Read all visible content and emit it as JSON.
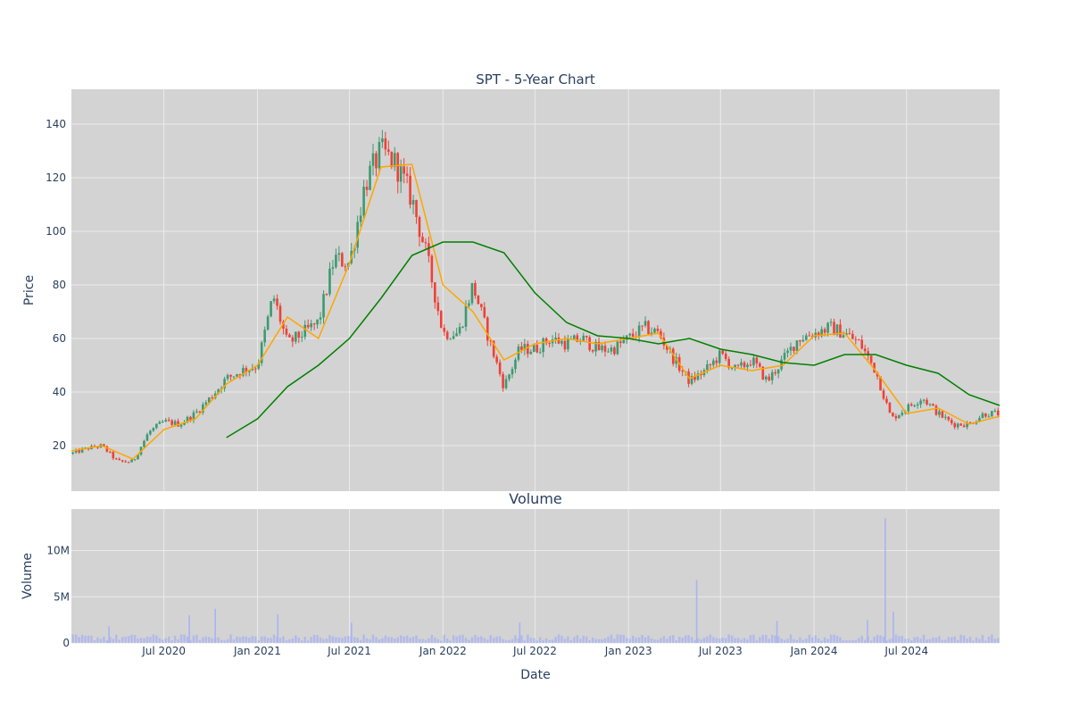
{
  "chart_data": [
    {
      "type": "candlestick",
      "title": "SPT - 5-Year Chart",
      "xlabel": "",
      "ylabel": "Price",
      "ylim": [
        3,
        153
      ],
      "yticks": [
        20,
        40,
        60,
        80,
        100,
        120,
        140
      ],
      "grid": true,
      "legend": "none",
      "colors": {
        "up": "#3d9970",
        "down": "#ef4136",
        "ma_short": "#ffa500",
        "ma_long": "#008000",
        "plot_bg": "#d3d3d3",
        "grid": "#ebebeb"
      },
      "series": [
        {
          "kind": "close",
          "x": [
            "2020-01-01",
            "2020-02-01",
            "2020-03-01",
            "2020-04-01",
            "2020-05-01",
            "2020-06-01",
            "2020-07-01",
            "2020-08-01",
            "2020-09-01",
            "2020-10-01",
            "2020-11-01",
            "2020-12-01",
            "2021-01-01",
            "2021-02-01",
            "2021-03-01",
            "2021-04-01",
            "2021-05-01",
            "2021-06-01",
            "2021-07-01",
            "2021-08-01",
            "2021-09-01",
            "2021-10-01",
            "2021-11-01",
            "2021-12-01",
            "2022-01-01",
            "2022-02-01",
            "2022-03-01",
            "2022-04-01",
            "2022-05-01",
            "2022-06-01",
            "2022-07-01",
            "2022-08-01",
            "2022-09-01",
            "2022-10-01",
            "2022-11-01",
            "2022-12-01",
            "2023-01-01",
            "2023-02-01",
            "2023-03-01",
            "2023-04-01",
            "2023-05-01",
            "2023-06-01",
            "2023-07-01",
            "2023-08-01",
            "2023-09-01",
            "2023-10-01",
            "2023-11-01",
            "2023-12-01",
            "2024-01-01",
            "2024-02-01",
            "2024-03-01",
            "2024-04-01",
            "2024-05-01",
            "2024-06-01",
            "2024-07-01",
            "2024-08-01",
            "2024-09-01",
            "2024-10-01",
            "2024-11-01",
            "2024-12-01"
          ],
          "values": [
            17,
            19,
            20,
            14,
            14,
            25,
            29,
            28,
            32,
            38,
            45,
            48,
            50,
            76,
            58,
            62,
            66,
            90,
            88,
            118,
            130,
            125,
            112,
            90,
            62,
            62,
            80,
            60,
            42,
            56,
            56,
            60,
            58,
            60,
            56,
            56,
            60,
            64,
            62,
            52,
            44,
            48,
            54,
            48,
            52,
            44,
            52,
            60,
            62,
            64,
            62,
            58,
            48,
            30,
            34,
            38,
            32,
            28,
            28,
            32
          ]
        },
        {
          "kind": "ma_short",
          "x": [
            "2020-01-01",
            "2020-03-01",
            "2020-05-01",
            "2020-07-01",
            "2020-09-01",
            "2020-11-01",
            "2021-01-01",
            "2021-03-01",
            "2021-05-01",
            "2021-07-01",
            "2021-09-01",
            "2021-11-01",
            "2022-01-01",
            "2022-03-01",
            "2022-05-01",
            "2022-07-01",
            "2022-09-01",
            "2022-11-01",
            "2023-01-01",
            "2023-03-01",
            "2023-05-01",
            "2023-07-01",
            "2023-09-01",
            "2023-11-01",
            "2024-01-01",
            "2024-03-01",
            "2024-05-01",
            "2024-07-01",
            "2024-09-01",
            "2024-11-01",
            "2024-12-31"
          ],
          "values": [
            18,
            20,
            15,
            26,
            30,
            43,
            50,
            68,
            60,
            88,
            124,
            125,
            80,
            70,
            52,
            58,
            60,
            58,
            60,
            62,
            45,
            50,
            48,
            50,
            61,
            62,
            48,
            32,
            34,
            28,
            31
          ]
        },
        {
          "kind": "ma_long",
          "x": [
            "2020-11-01",
            "2021-01-01",
            "2021-03-01",
            "2021-05-01",
            "2021-07-01",
            "2021-09-01",
            "2021-11-01",
            "2022-01-01",
            "2022-03-01",
            "2022-05-01",
            "2022-07-01",
            "2022-09-01",
            "2022-11-01",
            "2023-01-01",
            "2023-03-01",
            "2023-05-01",
            "2023-07-01",
            "2023-09-01",
            "2023-11-01",
            "2024-01-01",
            "2024-03-01",
            "2024-05-01",
            "2024-07-01",
            "2024-09-01",
            "2024-11-01",
            "2024-12-31"
          ],
          "values": [
            23,
            30,
            42,
            50,
            60,
            75,
            91,
            96,
            96,
            92,
            77,
            66,
            61,
            60,
            58,
            60,
            56,
            54,
            51,
            50,
            54,
            54,
            50,
            47,
            39,
            35
          ]
        }
      ]
    },
    {
      "type": "bar",
      "title": "Volume",
      "xlabel": "Date",
      "ylabel": "Volume",
      "ylim": [
        0,
        14500000
      ],
      "yticks": [
        0,
        5000000,
        10000000
      ],
      "ytick_labels": [
        "0",
        "5M",
        "10M"
      ],
      "xticks": [
        "2020-07-01",
        "2021-01-01",
        "2021-07-01",
        "2022-01-01",
        "2022-07-01",
        "2023-01-01",
        "2023-07-01",
        "2024-01-01",
        "2024-07-01"
      ],
      "xtick_labels": [
        "Jul 2020",
        "Jan 2021",
        "Jul 2021",
        "Jan 2022",
        "Jul 2022",
        "Jan 2023",
        "Jul 2023",
        "Jan 2024",
        "Jul 2024"
      ],
      "x_range": [
        "2020-01-01",
        "2024-12-31"
      ],
      "grid": true,
      "bar_color": "#aab4f0",
      "x": [
        "2020-03-15",
        "2020-08-20",
        "2020-10-10",
        "2021-02-10",
        "2021-07-05",
        "2022-06-01",
        "2023-05-15",
        "2023-10-20",
        "2024-04-15",
        "2024-05-20",
        "2024-06-05"
      ],
      "values": [
        1800000,
        3000000,
        3700000,
        3100000,
        2200000,
        2200000,
        6800000,
        2400000,
        2500000,
        13500000,
        3400000
      ]
    }
  ]
}
